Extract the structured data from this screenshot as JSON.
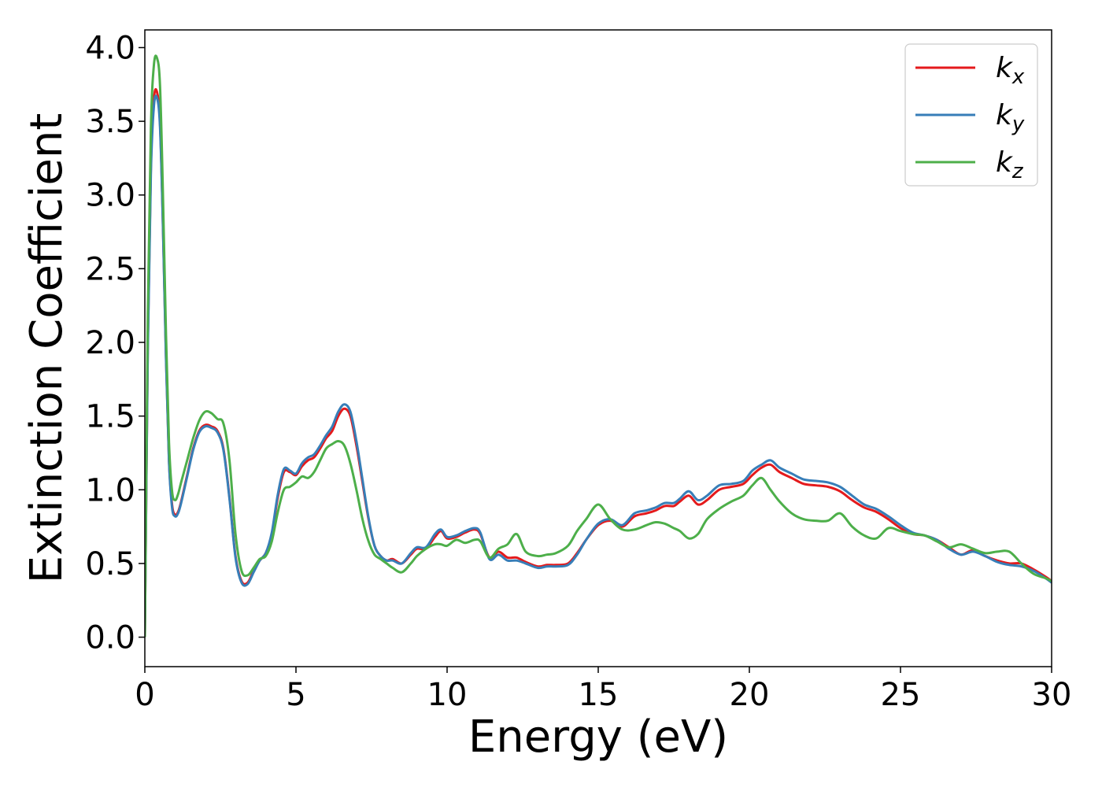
{
  "chart_data": {
    "type": "line",
    "title": "",
    "xlabel": "Energy (eV)",
    "ylabel": "Extinction Coefficient",
    "xlim": [
      0,
      30
    ],
    "ylim": [
      -0.2,
      4.12
    ],
    "xticks": [
      "0",
      "5",
      "10",
      "15",
      "20",
      "25",
      "30"
    ],
    "yticks": [
      "0.0",
      "0.5",
      "1.0",
      "1.5",
      "2.0",
      "2.5",
      "3.0",
      "3.5",
      "4.0"
    ],
    "grid": false,
    "legend_position": "top-right",
    "series": [
      {
        "name": "k_x",
        "label_base": "k",
        "label_sub": "x",
        "color": "#e41a1c",
        "x": [
          0,
          0.1,
          0.2,
          0.3,
          0.4,
          0.5,
          0.6,
          0.7,
          0.8,
          0.9,
          1.0,
          1.1,
          1.2,
          1.4,
          1.6,
          1.8,
          2.0,
          2.2,
          2.4,
          2.6,
          2.8,
          3.0,
          3.2,
          3.4,
          3.6,
          3.8,
          4.0,
          4.2,
          4.4,
          4.6,
          4.8,
          5.0,
          5.2,
          5.4,
          5.6,
          5.8,
          6.0,
          6.2,
          6.4,
          6.6,
          6.8,
          7.0,
          7.2,
          7.4,
          7.6,
          7.8,
          8.0,
          8.2,
          8.5,
          8.8,
          9.0,
          9.3,
          9.6,
          9.8,
          10.0,
          10.3,
          10.6,
          10.9,
          11.1,
          11.4,
          11.7,
          12.0,
          12.3,
          12.6,
          13.0,
          13.3,
          13.6,
          14.0,
          14.3,
          14.6,
          15.0,
          15.4,
          15.8,
          16.2,
          16.6,
          16.9,
          17.2,
          17.5,
          17.7,
          18.0,
          18.3,
          18.6,
          19.0,
          19.4,
          19.8,
          20.1,
          20.4,
          20.7,
          21.0,
          21.4,
          21.8,
          22.2,
          22.6,
          23.0,
          23.4,
          23.8,
          24.2,
          24.6,
          25.0,
          25.4,
          25.8,
          26.2,
          26.6,
          27.0,
          27.4,
          27.8,
          28.2,
          28.6,
          29.0,
          29.4,
          29.8,
          30.0
        ],
        "y": [
          0.0,
          2.0,
          3.2,
          3.65,
          3.7,
          3.5,
          2.8,
          1.9,
          1.2,
          0.9,
          0.83,
          0.85,
          0.92,
          1.1,
          1.28,
          1.4,
          1.44,
          1.43,
          1.4,
          1.28,
          0.95,
          0.55,
          0.38,
          0.37,
          0.45,
          0.52,
          0.57,
          0.7,
          0.95,
          1.12,
          1.12,
          1.1,
          1.16,
          1.2,
          1.22,
          1.28,
          1.35,
          1.4,
          1.5,
          1.55,
          1.5,
          1.3,
          1.05,
          0.8,
          0.62,
          0.55,
          0.52,
          0.53,
          0.5,
          0.56,
          0.6,
          0.6,
          0.68,
          0.72,
          0.67,
          0.68,
          0.71,
          0.73,
          0.7,
          0.54,
          0.58,
          0.54,
          0.54,
          0.51,
          0.48,
          0.49,
          0.49,
          0.5,
          0.57,
          0.66,
          0.76,
          0.79,
          0.75,
          0.82,
          0.84,
          0.86,
          0.89,
          0.89,
          0.92,
          0.96,
          0.9,
          0.93,
          1.0,
          1.02,
          1.04,
          1.1,
          1.15,
          1.17,
          1.12,
          1.08,
          1.04,
          1.03,
          1.02,
          0.99,
          0.93,
          0.88,
          0.85,
          0.8,
          0.74,
          0.7,
          0.69,
          0.66,
          0.61,
          0.56,
          0.59,
          0.55,
          0.52,
          0.5,
          0.5,
          0.46,
          0.41,
          0.38
        ],
        "wiggle": 0
      },
      {
        "name": "k_y",
        "label_base": "k",
        "label_sub": "y",
        "color": "#377eb8",
        "x": [
          0,
          0.1,
          0.2,
          0.3,
          0.4,
          0.5,
          0.6,
          0.7,
          0.8,
          0.9,
          1.0,
          1.1,
          1.2,
          1.4,
          1.6,
          1.8,
          2.0,
          2.2,
          2.4,
          2.6,
          2.8,
          3.0,
          3.2,
          3.4,
          3.6,
          3.8,
          4.0,
          4.2,
          4.4,
          4.6,
          4.8,
          5.0,
          5.2,
          5.4,
          5.6,
          5.8,
          6.0,
          6.2,
          6.4,
          6.6,
          6.8,
          7.0,
          7.2,
          7.4,
          7.6,
          7.8,
          8.0,
          8.2,
          8.5,
          8.8,
          9.0,
          9.3,
          9.6,
          9.8,
          10.0,
          10.3,
          10.6,
          10.9,
          11.1,
          11.4,
          11.7,
          12.0,
          12.3,
          12.6,
          13.0,
          13.3,
          13.6,
          14.0,
          14.3,
          14.6,
          15.0,
          15.4,
          15.8,
          16.2,
          16.6,
          16.9,
          17.2,
          17.5,
          17.7,
          18.0,
          18.3,
          18.6,
          19.0,
          19.4,
          19.8,
          20.1,
          20.4,
          20.7,
          21.0,
          21.4,
          21.8,
          22.2,
          22.6,
          23.0,
          23.4,
          23.8,
          24.2,
          24.6,
          25.0,
          25.4,
          25.8,
          26.2,
          26.6,
          27.0,
          27.4,
          27.8,
          28.2,
          28.6,
          29.0,
          29.4,
          29.8,
          30.0
        ],
        "y": [
          0.0,
          1.95,
          3.15,
          3.6,
          3.66,
          3.47,
          2.78,
          1.88,
          1.19,
          0.88,
          0.82,
          0.84,
          0.91,
          1.09,
          1.27,
          1.39,
          1.43,
          1.42,
          1.39,
          1.27,
          0.94,
          0.54,
          0.37,
          0.36,
          0.44,
          0.52,
          0.57,
          0.71,
          0.97,
          1.14,
          1.13,
          1.11,
          1.18,
          1.22,
          1.24,
          1.3,
          1.37,
          1.43,
          1.53,
          1.58,
          1.53,
          1.33,
          1.07,
          0.81,
          0.62,
          0.55,
          0.52,
          0.52,
          0.5,
          0.57,
          0.61,
          0.61,
          0.7,
          0.73,
          0.68,
          0.69,
          0.72,
          0.74,
          0.71,
          0.53,
          0.56,
          0.52,
          0.52,
          0.5,
          0.47,
          0.48,
          0.48,
          0.49,
          0.56,
          0.66,
          0.77,
          0.8,
          0.76,
          0.84,
          0.86,
          0.88,
          0.91,
          0.91,
          0.94,
          0.99,
          0.93,
          0.96,
          1.03,
          1.04,
          1.06,
          1.13,
          1.17,
          1.2,
          1.15,
          1.11,
          1.07,
          1.06,
          1.05,
          1.02,
          0.96,
          0.9,
          0.87,
          0.82,
          0.76,
          0.71,
          0.69,
          0.66,
          0.6,
          0.56,
          0.58,
          0.55,
          0.51,
          0.49,
          0.48,
          0.45,
          0.4,
          0.37
        ],
        "wiggle": 0
      },
      {
        "name": "k_z",
        "label_base": "k",
        "label_sub": "z",
        "color": "#4daf4a",
        "x": [
          0,
          0.1,
          0.2,
          0.3,
          0.4,
          0.5,
          0.6,
          0.7,
          0.8,
          0.9,
          1.0,
          1.1,
          1.2,
          1.4,
          1.6,
          1.8,
          2.0,
          2.2,
          2.4,
          2.6,
          2.8,
          3.0,
          3.2,
          3.4,
          3.6,
          3.8,
          4.0,
          4.2,
          4.4,
          4.6,
          4.8,
          5.0,
          5.2,
          5.4,
          5.6,
          5.8,
          6.0,
          6.2,
          6.4,
          6.6,
          6.8,
          7.0,
          7.2,
          7.4,
          7.6,
          7.8,
          8.0,
          8.2,
          8.5,
          8.8,
          9.0,
          9.3,
          9.6,
          9.8,
          10.0,
          10.3,
          10.6,
          10.9,
          11.1,
          11.4,
          11.7,
          12.0,
          12.3,
          12.6,
          13.0,
          13.3,
          13.6,
          14.0,
          14.3,
          14.6,
          15.0,
          15.4,
          15.8,
          16.2,
          16.6,
          16.9,
          17.2,
          17.5,
          17.7,
          18.0,
          18.3,
          18.6,
          19.0,
          19.4,
          19.8,
          20.1,
          20.4,
          20.7,
          21.0,
          21.4,
          21.8,
          22.2,
          22.6,
          23.0,
          23.4,
          23.8,
          24.2,
          24.6,
          25.0,
          25.4,
          25.8,
          26.2,
          26.6,
          27.0,
          27.4,
          27.8,
          28.2,
          28.6,
          29.0,
          29.4,
          29.8,
          30.0
        ],
        "y": [
          0.0,
          2.2,
          3.45,
          3.88,
          3.93,
          3.75,
          3.0,
          2.05,
          1.32,
          0.99,
          0.93,
          0.97,
          1.05,
          1.2,
          1.35,
          1.47,
          1.53,
          1.52,
          1.48,
          1.45,
          1.2,
          0.7,
          0.45,
          0.42,
          0.47,
          0.53,
          0.55,
          0.65,
          0.85,
          1.0,
          1.02,
          1.05,
          1.09,
          1.08,
          1.12,
          1.2,
          1.28,
          1.31,
          1.33,
          1.3,
          1.18,
          1.0,
          0.8,
          0.65,
          0.56,
          0.53,
          0.5,
          0.47,
          0.44,
          0.5,
          0.55,
          0.6,
          0.63,
          0.63,
          0.62,
          0.66,
          0.64,
          0.66,
          0.65,
          0.54,
          0.6,
          0.63,
          0.7,
          0.58,
          0.55,
          0.56,
          0.57,
          0.62,
          0.72,
          0.8,
          0.9,
          0.8,
          0.73,
          0.73,
          0.76,
          0.78,
          0.77,
          0.74,
          0.72,
          0.67,
          0.7,
          0.8,
          0.87,
          0.92,
          0.96,
          1.03,
          1.08,
          1.0,
          0.92,
          0.84,
          0.8,
          0.79,
          0.79,
          0.84,
          0.75,
          0.69,
          0.67,
          0.74,
          0.72,
          0.7,
          0.69,
          0.65,
          0.61,
          0.63,
          0.6,
          0.57,
          0.58,
          0.58,
          0.5,
          0.43,
          0.4,
          0.38
        ],
        "wiggle": 0
      }
    ]
  }
}
